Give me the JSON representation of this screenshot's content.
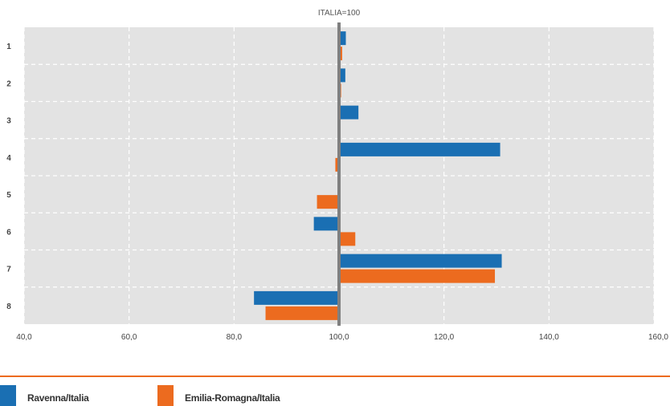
{
  "chart_data": {
    "type": "bar",
    "orientation": "horizontal",
    "title": "ITALIA=100",
    "categories": [
      "1",
      "2",
      "3",
      "4",
      "5",
      "6",
      "7",
      "8"
    ],
    "baseline": 100,
    "xlim": [
      40,
      160
    ],
    "xticks": [
      40,
      60,
      80,
      100,
      120,
      140,
      160
    ],
    "xtick_labels": [
      "40,0",
      "60,0",
      "80,0",
      "100,0",
      "120,0",
      "140,0",
      "160,0"
    ],
    "grid": true,
    "legend_position": "bottom",
    "series": [
      {
        "name": "Ravenna/Italia",
        "color": "#1a6fb3",
        "values": [
          101.3,
          101.2,
          103.7,
          130.7,
          100.0,
          95.2,
          131.0,
          83.8
        ]
      },
      {
        "name": "Emilia-Romagna/Italia",
        "color": "#ec6b1f",
        "values": [
          100.6,
          100.4,
          100.2,
          99.3,
          95.8,
          103.1,
          129.7,
          86.0
        ]
      }
    ]
  },
  "colors": {
    "plot_background": "#e3e3e3",
    "grid": "#ffffff",
    "baseline": "#808080",
    "legend_rule": "#ec6b1f"
  }
}
